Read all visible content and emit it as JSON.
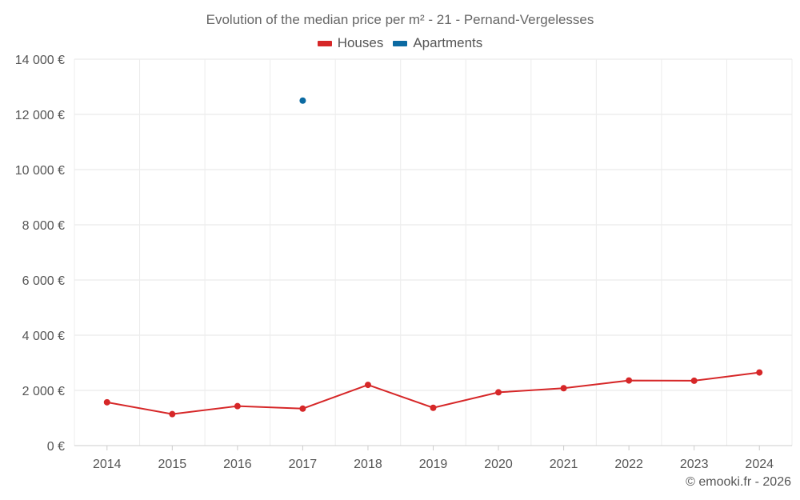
{
  "chart_data": {
    "type": "line",
    "title": "Evolution of the median price per m² - 21 - Pernand-Vergelesses",
    "xlabel": "",
    "ylabel": "",
    "categories": [
      "2014",
      "2015",
      "2016",
      "2017",
      "2018",
      "2019",
      "2020",
      "2021",
      "2022",
      "2023",
      "2024"
    ],
    "ylim": [
      0,
      14000
    ],
    "yticks": [
      0,
      2000,
      4000,
      6000,
      8000,
      10000,
      12000,
      14000
    ],
    "ytick_labels": [
      "0 €",
      "2 000 €",
      "4 000 €",
      "6 000 €",
      "8 000 €",
      "10 000 €",
      "12 000 €",
      "14 000 €"
    ],
    "grid": true,
    "legend_position": "top-center",
    "series": [
      {
        "name": "Houses",
        "color": "#d62728",
        "values": [
          1570,
          1140,
          1430,
          1340,
          2200,
          1370,
          1930,
          2080,
          2360,
          2350,
          2650
        ]
      },
      {
        "name": "Apartments",
        "color": "#0b6aa2",
        "values": [
          null,
          null,
          null,
          12500,
          null,
          null,
          null,
          null,
          null,
          null,
          null
        ]
      }
    ]
  },
  "credit": "© emooki.fr - 2026"
}
